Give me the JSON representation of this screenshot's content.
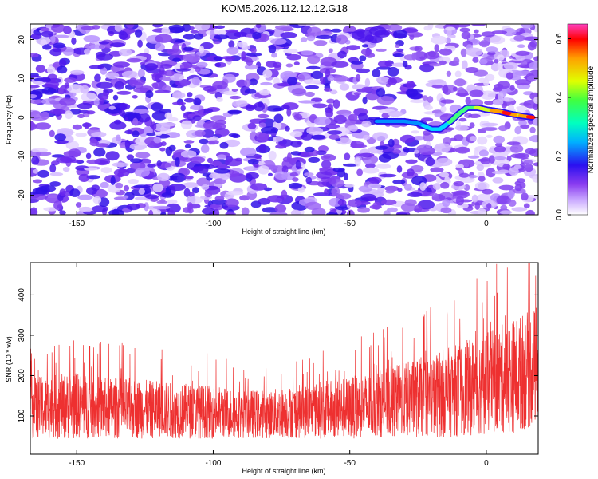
{
  "figure_title": "KOM5.2026.112.12.12.G18",
  "chart_data": [
    {
      "type": "heatmap",
      "title": "KOM5.2026.112.12.12.G18",
      "xlabel": "Height of straight line (km)",
      "ylabel": "Frequency (Hz)",
      "xlim": [
        -167,
        19
      ],
      "ylim": [
        -25,
        24
      ],
      "xticks": [
        -150,
        -100,
        -50,
        0
      ],
      "yticks": [
        -20,
        -10,
        0,
        10,
        20
      ],
      "colorbar": {
        "label": "Normalized spectral amplitude",
        "range": [
          0.0,
          0.65
        ],
        "ticks": [
          "0.0",
          "0.2",
          "0.4",
          "0.6"
        ],
        "tick_values": [
          0.0,
          0.2,
          0.4,
          0.6
        ],
        "colormap": [
          "#ffffff",
          "#8a3cf0",
          "#2a10f0",
          "#00b0ff",
          "#00ffc0",
          "#40ff40",
          "#e0ff00",
          "#ffa000",
          "#ff0000",
          "#ff40c0"
        ]
      },
      "signal_track": {
        "description": "frequency ridge of peak amplitude vs height",
        "points": [
          {
            "x": -40,
            "y": -1,
            "amp": 0.2
          },
          {
            "x": -35,
            "y": -1,
            "amp": 0.22
          },
          {
            "x": -30,
            "y": -1,
            "amp": 0.25
          },
          {
            "x": -25,
            "y": -1.5,
            "amp": 0.28
          },
          {
            "x": -20,
            "y": -3,
            "amp": 0.32
          },
          {
            "x": -17,
            "y": -3,
            "amp": 0.35
          },
          {
            "x": -13,
            "y": -1,
            "amp": 0.38
          },
          {
            "x": -10,
            "y": 1,
            "amp": 0.4
          },
          {
            "x": -7,
            "y": 2.5,
            "amp": 0.42
          },
          {
            "x": -3,
            "y": 2.5,
            "amp": 0.45
          },
          {
            "x": 0,
            "y": 2,
            "amp": 0.48
          },
          {
            "x": 5,
            "y": 1.5,
            "amp": 0.55
          },
          {
            "x": 8,
            "y": 1,
            "amp": 0.6
          },
          {
            "x": 12,
            "y": 0.5,
            "amp": 0.5
          },
          {
            "x": 17,
            "y": 0,
            "amp": 0.62
          }
        ]
      }
    },
    {
      "type": "line",
      "xlabel": "Height of straight line (km)",
      "ylabel": "SNR (10 * v/v)",
      "xlim": [
        -167,
        19
      ],
      "ylim": [
        5,
        480
      ],
      "xticks": [
        -150,
        -100,
        -50,
        0
      ],
      "yticks": [
        100,
        200,
        300,
        400
      ],
      "series": [
        {
          "name": "SNR",
          "color": "#ee3030",
          "envelope_x": [
            -165,
            -150,
            -140,
            -130,
            -120,
            -110,
            -100,
            -90,
            -80,
            -70,
            -60,
            -50,
            -40,
            -30,
            -20,
            -10,
            0,
            10,
            17
          ],
          "envelope_mean": [
            120,
            125,
            120,
            118,
            115,
            112,
            110,
            105,
            105,
            110,
            115,
            120,
            130,
            140,
            150,
            165,
            180,
            200,
            220
          ],
          "envelope_spread": [
            70,
            75,
            70,
            68,
            65,
            62,
            60,
            55,
            55,
            60,
            65,
            70,
            75,
            85,
            95,
            105,
            115,
            130,
            135
          ]
        }
      ]
    }
  ]
}
